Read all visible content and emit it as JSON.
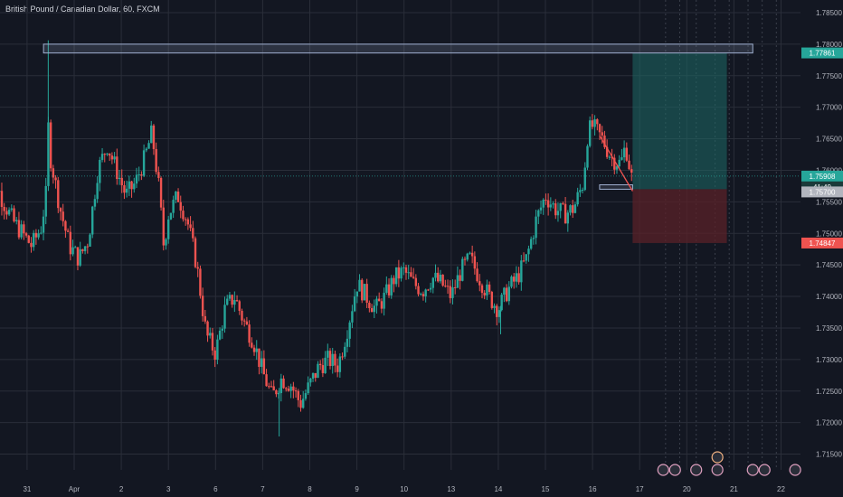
{
  "header": {
    "title": "British Pound / Canadian Dollar, 60, FXCM"
  },
  "colors": {
    "background": "#131722",
    "grid": "#2a2e39",
    "up": "#26a69a",
    "down": "#ef5350",
    "zone": "#9fb0d0",
    "profit": "#1e6a66",
    "loss": "#5a2228",
    "tag_target": "#26a69a",
    "tag_price": "#26a69a",
    "tag_countdown": "#1b3a3a",
    "tag_entry": "#b2b5be",
    "tag_stop": "#ef5350"
  },
  "price_tags": {
    "target": "1.77861",
    "price": "1.75908",
    "countdown": "41:49",
    "entry": "1.75700",
    "stop": "1.74847"
  },
  "chart_data": {
    "type": "candlestick",
    "symbol": "GBPCAD",
    "timeframe": "60",
    "ylim": [
      1.7125,
      1.787
    ],
    "yticks": [
      "1.78500",
      "1.78000",
      "1.77500",
      "1.77000",
      "1.76500",
      "1.76000",
      "1.75500",
      "1.75000",
      "1.74500",
      "1.74000",
      "1.73500",
      "1.73000",
      "1.72500",
      "1.72000",
      "1.71500"
    ],
    "ytick_values": [
      1.785,
      1.78,
      1.775,
      1.77,
      1.765,
      1.76,
      1.755,
      1.75,
      1.745,
      1.74,
      1.735,
      1.73,
      1.725,
      1.72,
      1.715
    ],
    "xticks": [
      "31",
      "Apr",
      "2",
      "3",
      "6",
      "7",
      "8",
      "9",
      "10",
      "13",
      "14",
      "15",
      "16",
      "17",
      "20",
      "21",
      "22"
    ],
    "xtick_days": [
      -1,
      0,
      1,
      2,
      3,
      4,
      5,
      6,
      7,
      8,
      9,
      10,
      11,
      12,
      13,
      14,
      15
    ],
    "path": [
      [
        -1.9,
        1.752
      ],
      [
        -1.7,
        1.7585
      ],
      [
        -1.5,
        1.755
      ],
      [
        -1.3,
        1.752
      ],
      [
        -1.1,
        1.75
      ],
      [
        -0.9,
        1.748
      ],
      [
        -0.7,
        1.751
      ],
      [
        -0.6,
        1.756
      ],
      [
        -0.55,
        1.767
      ],
      [
        -0.5,
        1.762
      ],
      [
        -0.3,
        1.754
      ],
      [
        -0.1,
        1.748
      ],
      [
        0.1,
        1.746
      ],
      [
        0.3,
        1.749
      ],
      [
        0.5,
        1.76
      ],
      [
        0.7,
        1.764
      ],
      [
        0.9,
        1.76
      ],
      [
        1.1,
        1.756
      ],
      [
        1.3,
        1.758
      ],
      [
        1.5,
        1.762
      ],
      [
        1.65,
        1.766
      ],
      [
        1.8,
        1.757
      ],
      [
        1.9,
        1.748
      ],
      [
        2.0,
        1.753
      ],
      [
        2.2,
        1.756
      ],
      [
        2.4,
        1.752
      ],
      [
        2.6,
        1.745
      ],
      [
        2.8,
        1.734
      ],
      [
        3.0,
        1.731
      ],
      [
        3.2,
        1.738
      ],
      [
        3.4,
        1.74
      ],
      [
        3.6,
        1.736
      ],
      [
        3.8,
        1.733
      ],
      [
        4.0,
        1.728
      ],
      [
        4.2,
        1.724
      ],
      [
        4.4,
        1.727
      ],
      [
        4.6,
        1.726
      ],
      [
        4.8,
        1.723
      ],
      [
        5.0,
        1.726
      ],
      [
        5.2,
        1.729
      ],
      [
        5.4,
        1.73
      ],
      [
        5.6,
        1.729
      ],
      [
        5.8,
        1.735
      ],
      [
        6.0,
        1.742
      ],
      [
        6.2,
        1.74
      ],
      [
        6.4,
        1.738
      ],
      [
        6.6,
        1.74
      ],
      [
        6.8,
        1.743
      ],
      [
        7.0,
        1.744
      ],
      [
        7.2,
        1.742
      ],
      [
        7.4,
        1.741
      ],
      [
        7.6,
        1.743
      ],
      [
        7.8,
        1.742
      ],
      [
        8.0,
        1.74
      ],
      [
        8.2,
        1.744
      ],
      [
        8.4,
        1.746
      ],
      [
        8.6,
        1.743
      ],
      [
        8.8,
        1.74
      ],
      [
        9.0,
        1.738
      ],
      [
        9.2,
        1.741
      ],
      [
        9.4,
        1.743
      ],
      [
        9.6,
        1.746
      ],
      [
        9.8,
        1.752
      ],
      [
        10.0,
        1.756
      ],
      [
        10.2,
        1.754
      ],
      [
        10.4,
        1.753
      ],
      [
        10.6,
        1.754
      ],
      [
        10.8,
        1.758
      ],
      [
        10.9,
        1.766
      ],
      [
        11.0,
        1.767
      ],
      [
        11.2,
        1.765
      ],
      [
        11.4,
        1.762
      ],
      [
        11.6,
        1.761
      ],
      [
        11.7,
        1.764
      ],
      [
        11.8,
        1.76
      ],
      [
        11.85,
        1.758
      ]
    ],
    "key_zone": {
      "x_start": -0.65,
      "x_end": 14.4,
      "y_low": 1.7786,
      "y_high": 1.78
    },
    "entry_zone": {
      "x_start": 11.15,
      "x_end": 11.85,
      "y_low": 1.757,
      "y_high": 1.7577
    },
    "trendline": {
      "x_start": 11.15,
      "x_end": 11.85,
      "y_start": 1.7655,
      "y_end": 1.7567
    },
    "position": {
      "x_start": 11.85,
      "x_end": 13.85,
      "entry": 1.757,
      "target": 1.77861,
      "stop": 1.74847
    },
    "current_price": 1.75908,
    "vlines_dashed": [
      12.55,
      12.85,
      13.2,
      13.6,
      13.9,
      14.3,
      14.6,
      14.9
    ]
  }
}
